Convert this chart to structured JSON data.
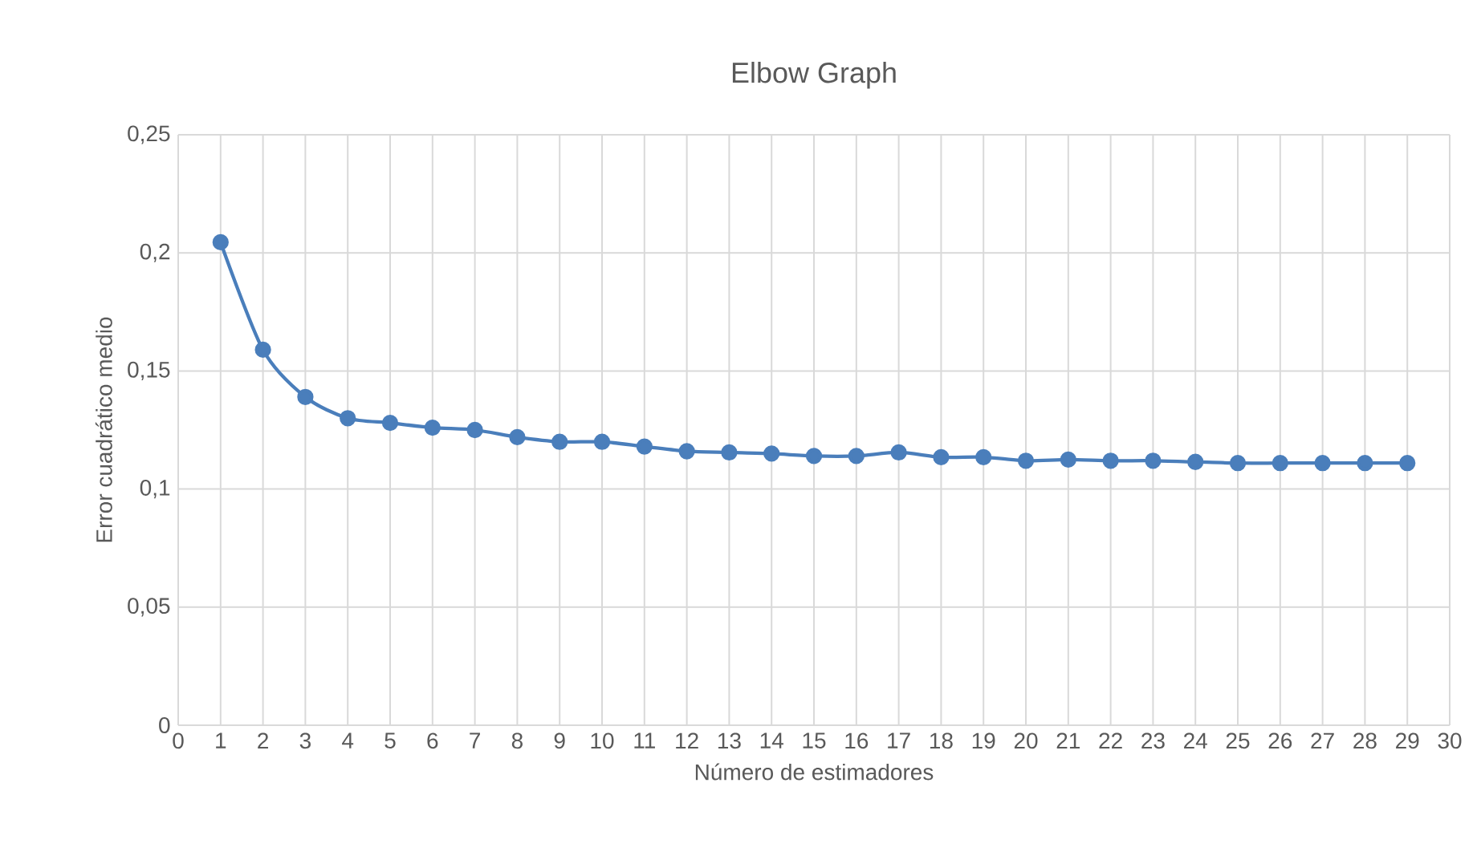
{
  "chart_data": {
    "type": "line",
    "title": "Elbow Graph",
    "xlabel": "Número de estimadores",
    "ylabel": "Error cuadrático medio",
    "x": [
      1,
      2,
      3,
      4,
      5,
      6,
      7,
      8,
      9,
      10,
      11,
      12,
      13,
      14,
      15,
      16,
      17,
      18,
      19,
      20,
      21,
      22,
      23,
      24,
      25,
      26,
      27,
      28,
      29
    ],
    "series": [
      {
        "color": "#4a7ebb",
        "values": [
          0.2045,
          0.159,
          0.139,
          0.13,
          0.128,
          0.126,
          0.125,
          0.122,
          0.12,
          0.12,
          0.118,
          0.116,
          0.1155,
          0.115,
          0.114,
          0.114,
          0.1155,
          0.1135,
          0.1135,
          0.112,
          0.1125,
          0.112,
          0.112,
          0.1115,
          0.111,
          0.111,
          0.111,
          0.111,
          0.111
        ]
      }
    ],
    "xlim": [
      0,
      30
    ],
    "xticks": [
      0,
      1,
      2,
      3,
      4,
      5,
      6,
      7,
      8,
      9,
      10,
      11,
      12,
      13,
      14,
      15,
      16,
      17,
      18,
      19,
      20,
      21,
      22,
      23,
      24,
      25,
      26,
      27,
      28,
      29,
      30
    ],
    "ylim": [
      0,
      0.25
    ],
    "yticks": [
      0,
      {
        "value": 0.05,
        "label": "0,05"
      },
      {
        "value": 0.1,
        "label": "0,1"
      },
      {
        "value": 0.15,
        "label": "0,15"
      },
      {
        "value": 0.2,
        "label": "0,2"
      },
      {
        "value": 0.25,
        "label": "0,25"
      }
    ],
    "grid": true,
    "marker": "circle",
    "line_style": "solid"
  }
}
